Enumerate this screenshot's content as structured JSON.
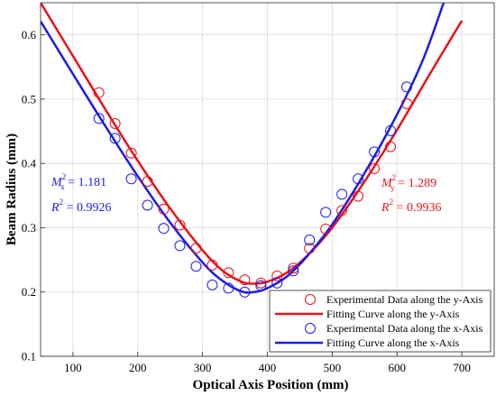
{
  "chart_data": {
    "type": "scatter",
    "xlabel": "Optical Axis Position (mm)",
    "ylabel": "Beam Radius (mm)",
    "xlim": [
      50,
      750
    ],
    "ylim": [
      0.1,
      0.65
    ],
    "xticks": [
      100,
      200,
      300,
      400,
      500,
      600,
      700
    ],
    "yticks": [
      0.1,
      0.2,
      0.3,
      0.4,
      0.5,
      0.6
    ],
    "xtick_labels": [
      "100",
      "200",
      "300",
      "400",
      "500",
      "600",
      "700"
    ],
    "ytick_labels": [
      "0.1",
      "0.2",
      "0.3",
      "0.4",
      "0.5",
      "0.6"
    ],
    "grid": true,
    "legend_position": "bottom-right",
    "colors": {
      "y_axis": "#e8121a",
      "x_axis": "#1c1ce6"
    },
    "series": [
      {
        "name": "Experimental Data along the y-Axis",
        "kind": "markers",
        "color": "#e8121a",
        "x": [
          140,
          165,
          190,
          215,
          240,
          265,
          290,
          315,
          340,
          365,
          390,
          415,
          440,
          465,
          490,
          515,
          540,
          565,
          590,
          615
        ],
        "y": [
          0.51,
          0.462,
          0.416,
          0.372,
          0.329,
          0.304,
          0.268,
          0.242,
          0.23,
          0.219,
          0.214,
          0.225,
          0.237,
          0.268,
          0.298,
          0.327,
          0.349,
          0.392,
          0.426,
          0.493
        ]
      },
      {
        "name": "Fitting Curve along the y-Axis",
        "kind": "line",
        "color": "#e8121a",
        "x": [
          50,
          100,
          150,
          200,
          250,
          300,
          330,
          360,
          380,
          400,
          430,
          460,
          500,
          550,
          600,
          650,
          700
        ],
        "y": [
          0.65,
          0.567,
          0.484,
          0.404,
          0.33,
          0.265,
          0.234,
          0.216,
          0.213,
          0.216,
          0.23,
          0.255,
          0.3,
          0.372,
          0.452,
          0.538,
          0.622
        ]
      },
      {
        "name": "Experimental Data along the x-Axis",
        "kind": "markers",
        "color": "#1c1ce6",
        "x": [
          140,
          165,
          190,
          215,
          240,
          265,
          290,
          315,
          340,
          365,
          390,
          415,
          440,
          465,
          490,
          515,
          540,
          565,
          590,
          615
        ],
        "y": [
          0.47,
          0.439,
          0.376,
          0.335,
          0.299,
          0.272,
          0.24,
          0.211,
          0.206,
          0.2,
          0.21,
          0.214,
          0.233,
          0.281,
          0.324,
          0.352,
          0.376,
          0.418,
          0.451,
          0.519
        ]
      },
      {
        "name": "Fitting Curve along the x-Axis",
        "kind": "line",
        "color": "#1c1ce6",
        "x": [
          50,
          100,
          150,
          200,
          250,
          300,
          330,
          360,
          380,
          400,
          430,
          460,
          500,
          550,
          600,
          640,
          672
        ],
        "y": [
          0.621,
          0.539,
          0.458,
          0.38,
          0.308,
          0.246,
          0.218,
          0.201,
          0.2,
          0.206,
          0.224,
          0.254,
          0.305,
          0.385,
          0.476,
          0.561,
          0.65
        ]
      }
    ],
    "annotations": {
      "x_axis": {
        "m_prefix": "M",
        "m_sup": "2",
        "m_sub": "x",
        "m_value": " = 1.181",
        "r_prefix": "R",
        "r_sup": "2",
        "r_value": " = 0.9926"
      },
      "y_axis": {
        "m_prefix": "M",
        "m_sup": "2",
        "m_sub": "y",
        "m_value": " = 1.289",
        "r_prefix": "R",
        "r_sup": "2",
        "r_value": " = 0.9936"
      }
    }
  }
}
